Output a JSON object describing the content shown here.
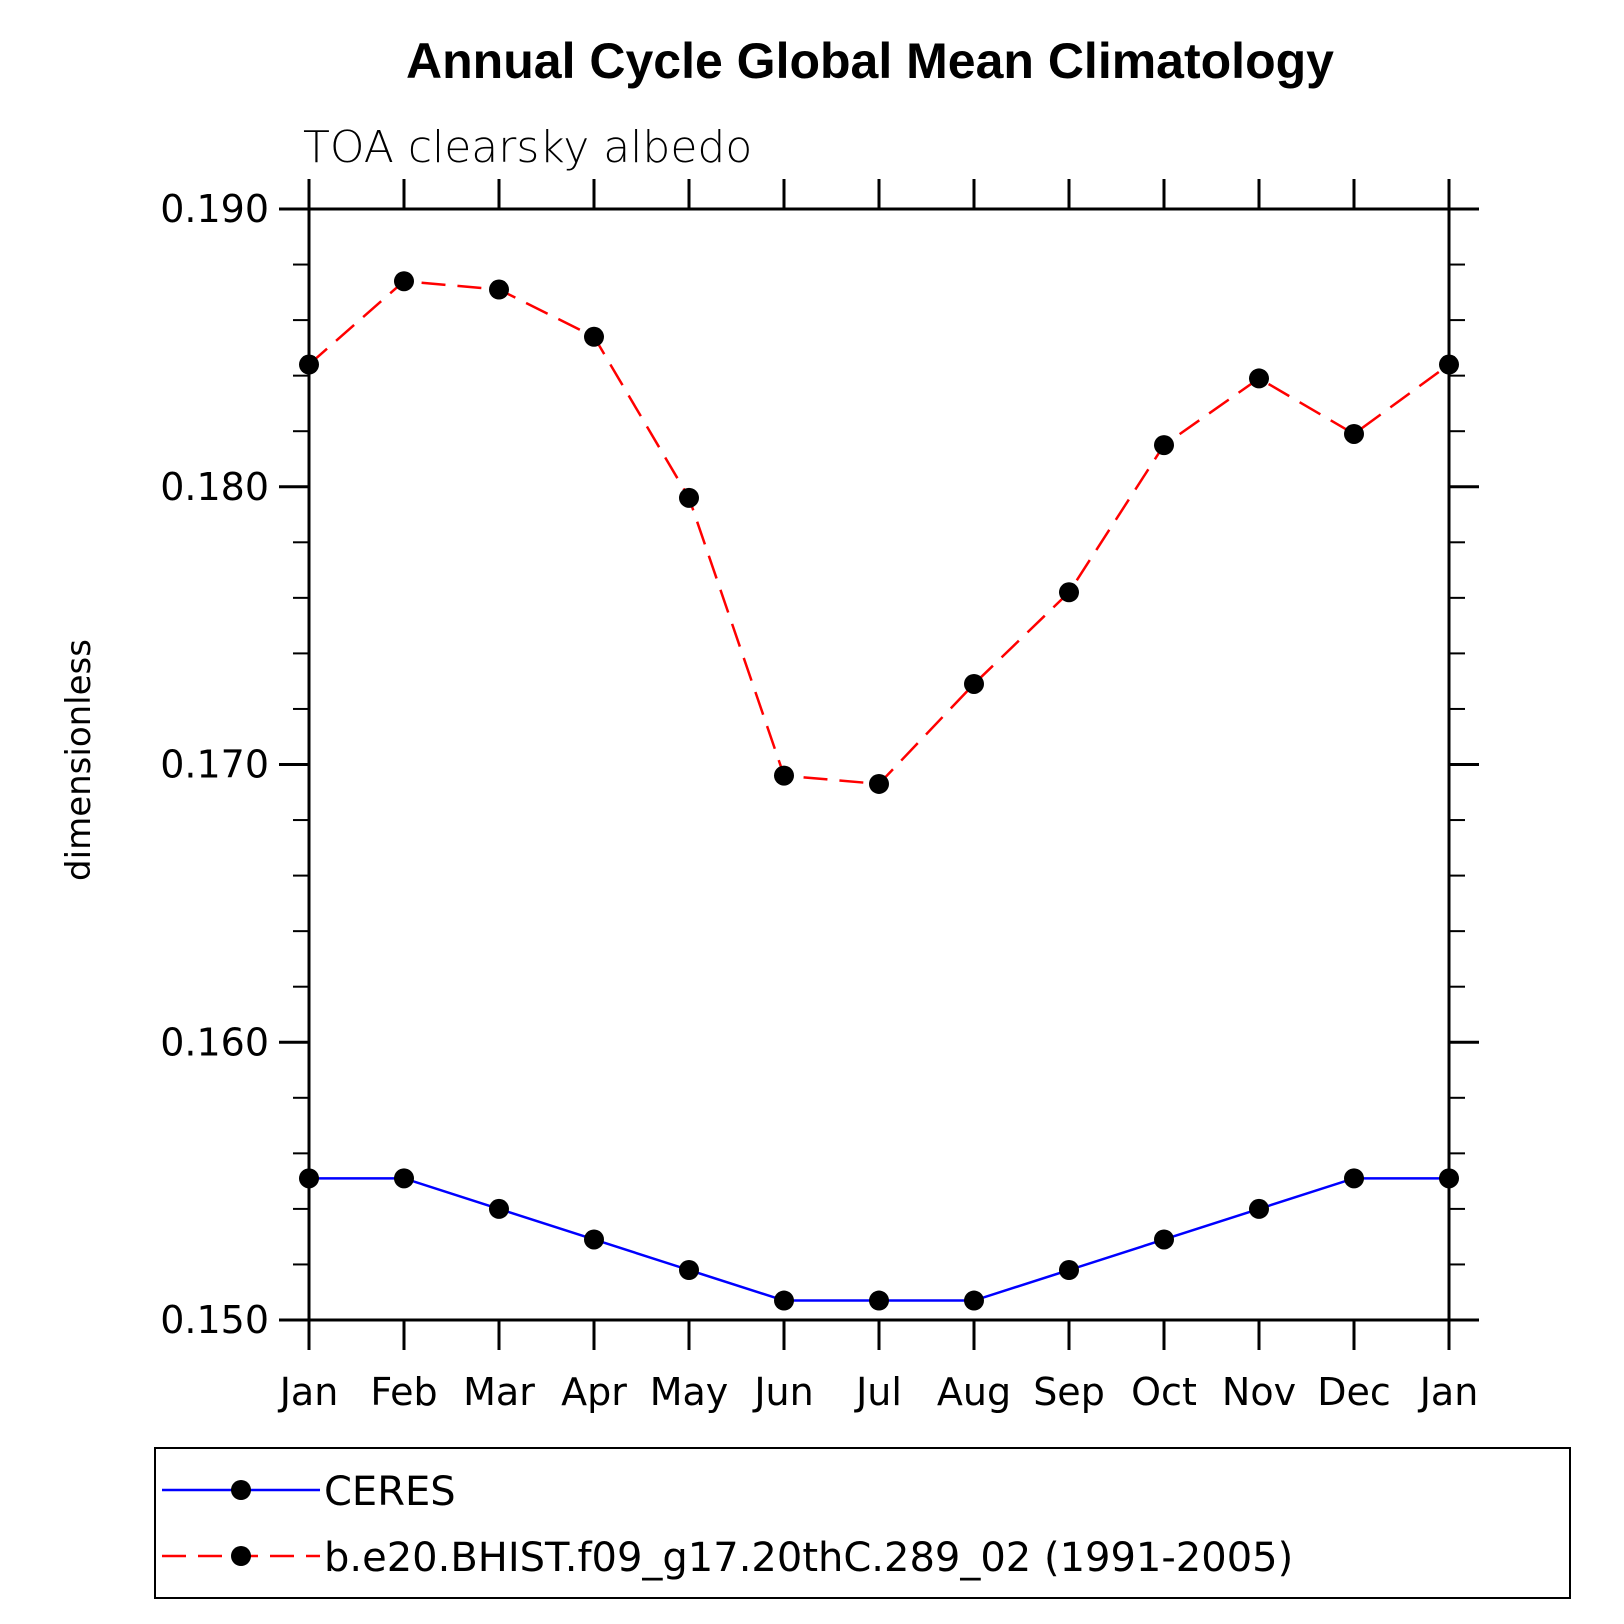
{
  "chart_data": {
    "type": "line",
    "title": "Annual Cycle Global Mean Climatology",
    "subtitle": "TOA clearsky albedo",
    "xlabel": "",
    "ylabel": "dimensionless",
    "categories": [
      "Jan",
      "Feb",
      "Mar",
      "Apr",
      "May",
      "Jun",
      "Jul",
      "Aug",
      "Sep",
      "Oct",
      "Nov",
      "Dec",
      "Jan"
    ],
    "ylim": [
      0.15,
      0.19
    ],
    "yticks": [
      "0.150",
      "0.160",
      "0.170",
      "0.180",
      "0.190"
    ],
    "yticks_values": [
      0.15,
      0.16,
      0.17,
      0.18,
      0.19
    ],
    "grid": false,
    "legend_position": "bottom",
    "series": [
      {
        "name": "CERES",
        "color": "#0000ff",
        "line_style": "solid",
        "marker": "filled-circle",
        "values": [
          0.1551,
          0.1551,
          0.154,
          0.1529,
          0.1518,
          0.1507,
          0.1507,
          0.1507,
          0.1518,
          0.1529,
          0.154,
          0.1551,
          0.1551
        ]
      },
      {
        "name": "b.e20.BHIST.f09_g17.20thC.289_02 (1991-2005)",
        "color": "#ff0000",
        "line_style": "dashed",
        "marker": "filled-circle",
        "values": [
          0.1844,
          0.1874,
          0.1871,
          0.1854,
          0.1796,
          0.1696,
          0.1693,
          0.1729,
          0.1762,
          0.1815,
          0.1839,
          0.1819,
          0.1844
        ]
      }
    ]
  }
}
